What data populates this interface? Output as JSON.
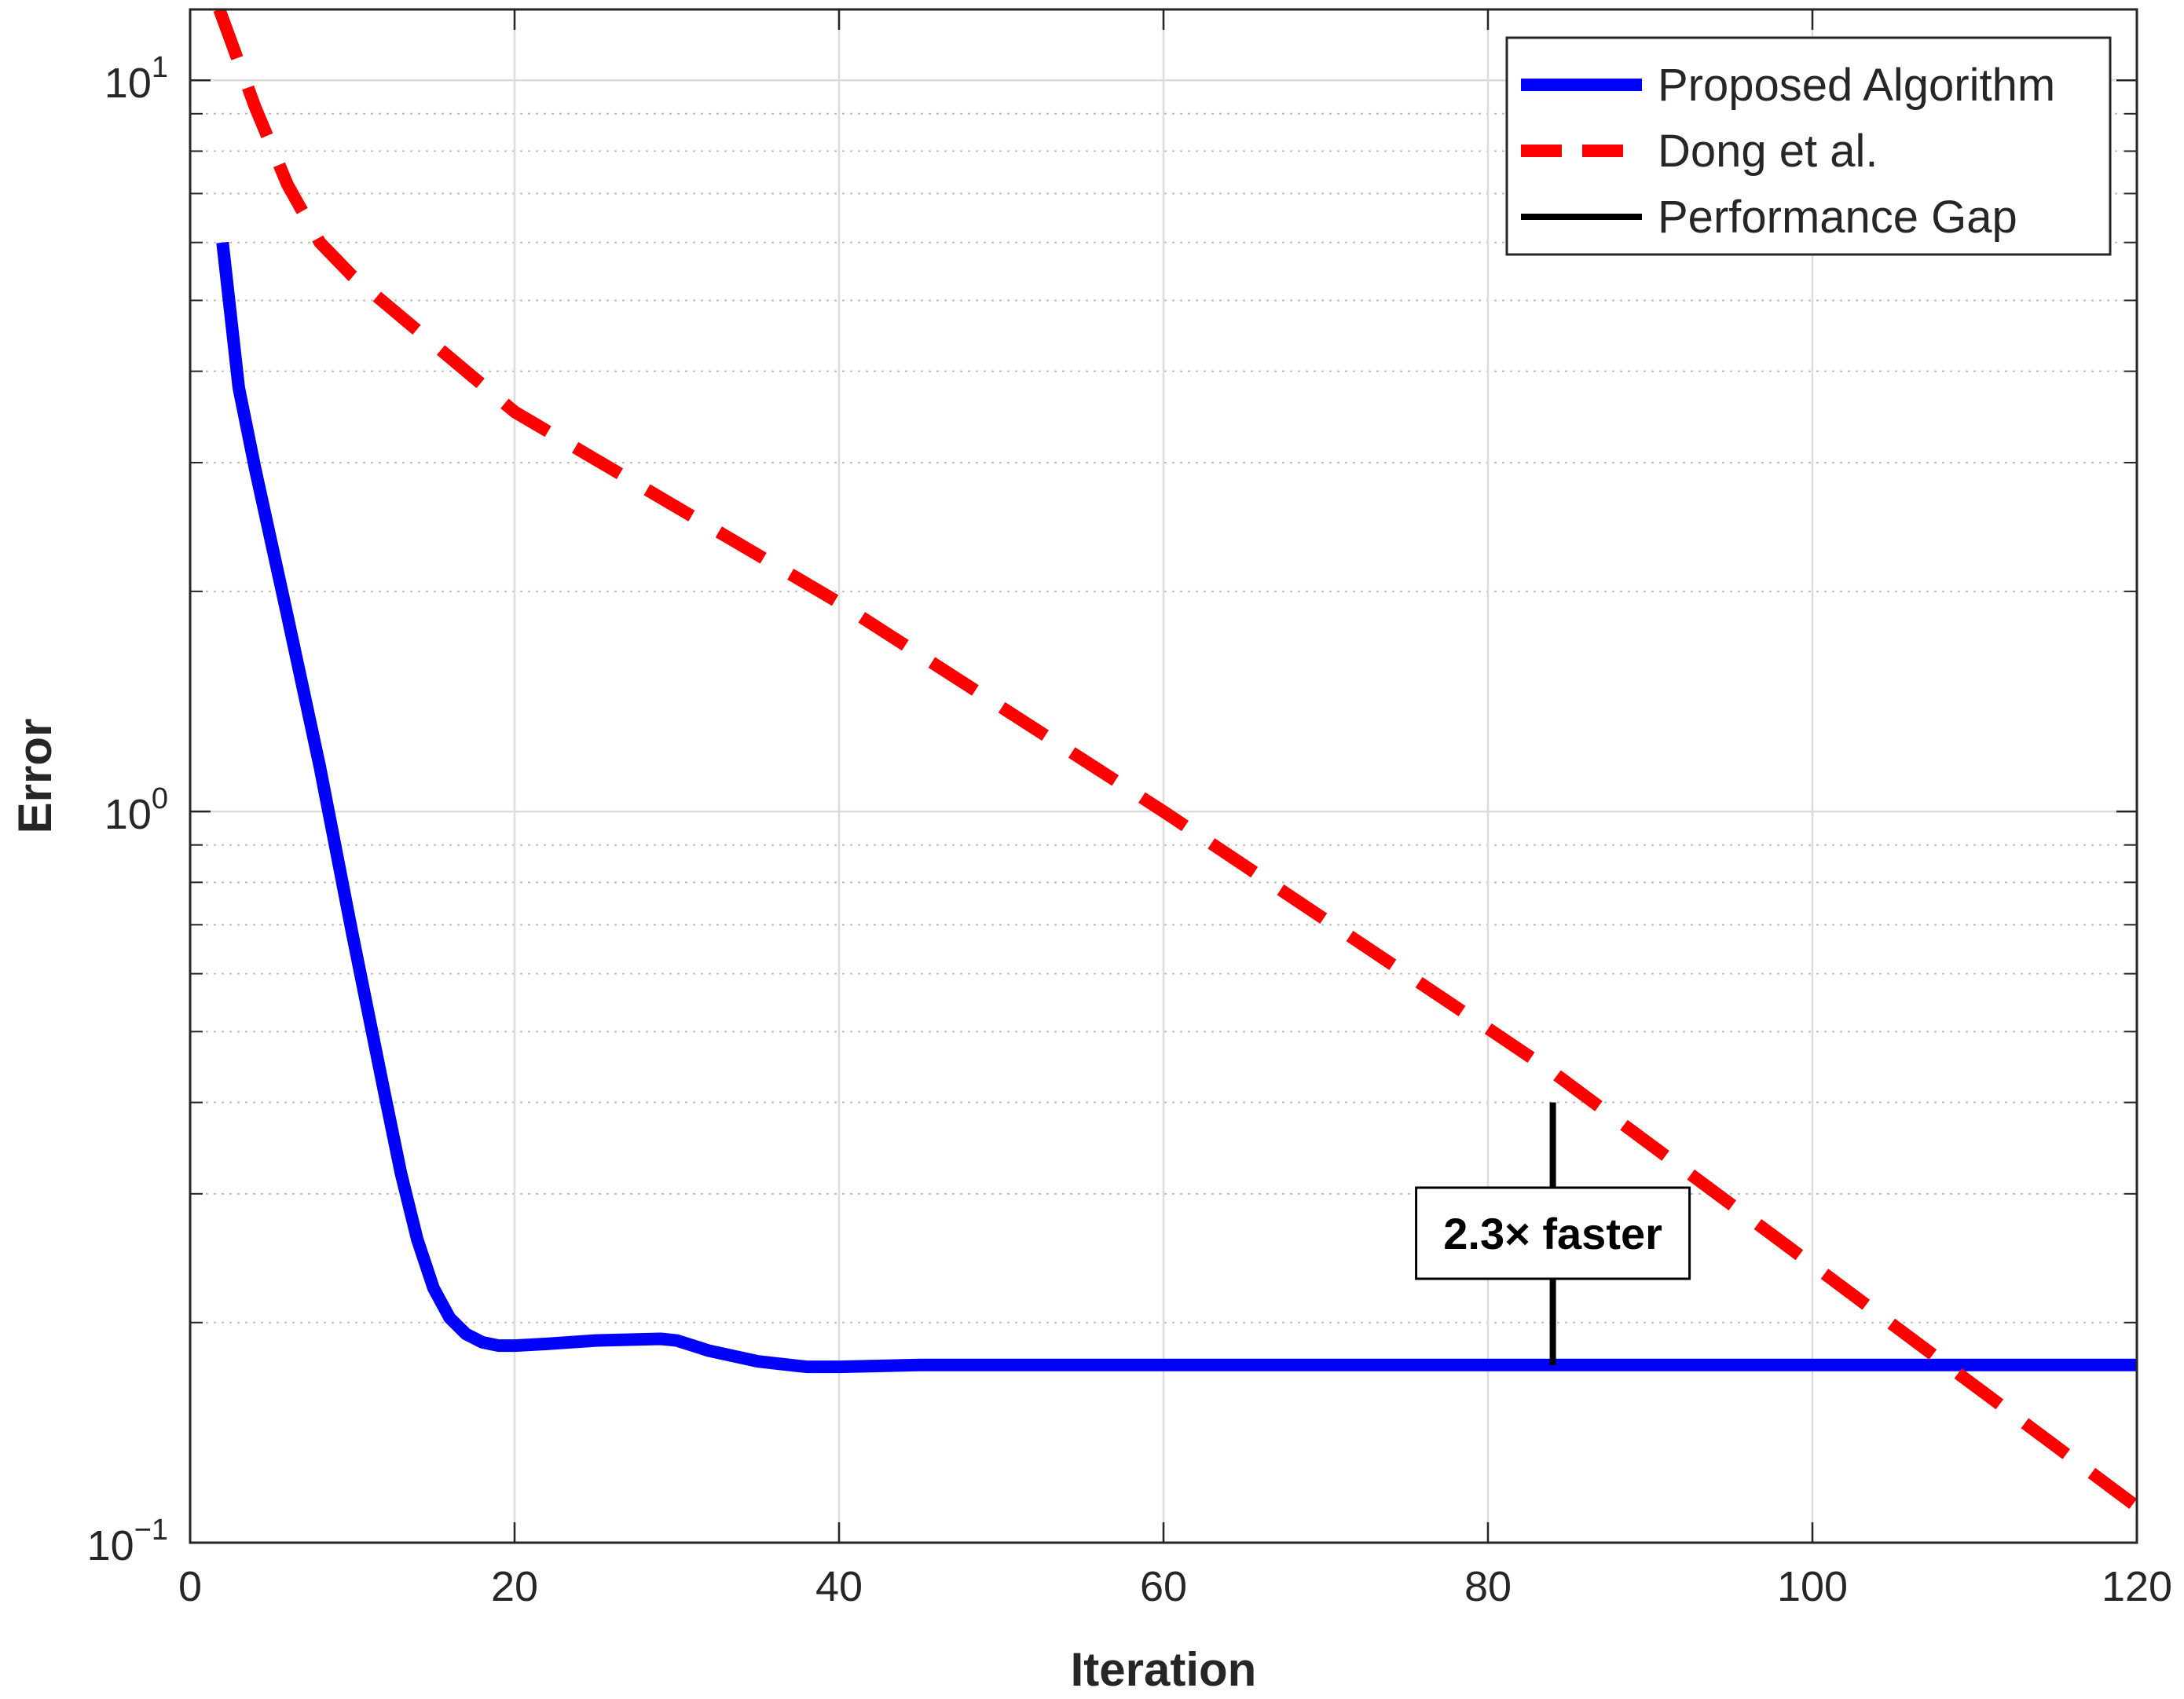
{
  "chart_data": {
    "type": "line",
    "title": "",
    "xlabel": "Iteration",
    "ylabel": "Error",
    "xlim": [
      0,
      120
    ],
    "ylim": [
      0.1,
      12.5
    ],
    "yscale": "log",
    "grid": true,
    "legend_position": "top-right",
    "x_ticks": [
      {
        "value": 0,
        "label": "0"
      },
      {
        "value": 20,
        "label": "20"
      },
      {
        "value": 40,
        "label": "40"
      },
      {
        "value": 60,
        "label": "60"
      },
      {
        "value": 80,
        "label": "80"
      },
      {
        "value": 100,
        "label": "100"
      },
      {
        "value": 120,
        "label": "120"
      }
    ],
    "y_ticks": [
      {
        "value": 0.1,
        "base": "10",
        "exponent": "−1"
      },
      {
        "value": 1,
        "base": "10",
        "exponent": "0"
      },
      {
        "value": 10,
        "base": "10",
        "exponent": "1"
      }
    ],
    "series": [
      {
        "name": "Proposed Algorithm",
        "color": "#0000ff",
        "style": "solid",
        "x": [
          2,
          3,
          4,
          6,
          8,
          10,
          12,
          13,
          14,
          15,
          16,
          17,
          18,
          19,
          20,
          22,
          25,
          29,
          30,
          32,
          35,
          38,
          40,
          45,
          50,
          60,
          80,
          100,
          120
        ],
        "y": [
          6.0,
          3.8,
          2.95,
          1.85,
          1.15,
          0.68,
          0.41,
          0.32,
          0.26,
          0.223,
          0.203,
          0.193,
          0.188,
          0.186,
          0.186,
          0.187,
          0.189,
          0.19,
          0.189,
          0.183,
          0.177,
          0.174,
          0.174,
          0.175,
          0.175,
          0.175,
          0.175,
          0.175,
          0.175
        ]
      },
      {
        "name": "Dong et al.",
        "color": "#ff0000",
        "style": "dashed",
        "x": [
          1.8,
          4,
          6,
          8,
          10,
          20,
          40,
          60,
          80,
          84,
          100,
          120
        ],
        "y": [
          12.5,
          9.2,
          7.2,
          6.0,
          5.4,
          3.52,
          1.93,
          1.0,
          0.505,
          0.44,
          0.24,
          0.112
        ]
      }
    ],
    "legend": [
      {
        "label": "Proposed Algorithm",
        "color": "#0000ff",
        "style": "solid"
      },
      {
        "label": "Dong et al.",
        "color": "#ff0000",
        "style": "dashed"
      },
      {
        "label": "Performance Gap",
        "color": "#000000",
        "style": "solid"
      }
    ],
    "annotation": {
      "text": "2.3× faster",
      "x": 84,
      "y_from": 0.175,
      "y_to": 0.4,
      "text_y": 0.265
    }
  }
}
